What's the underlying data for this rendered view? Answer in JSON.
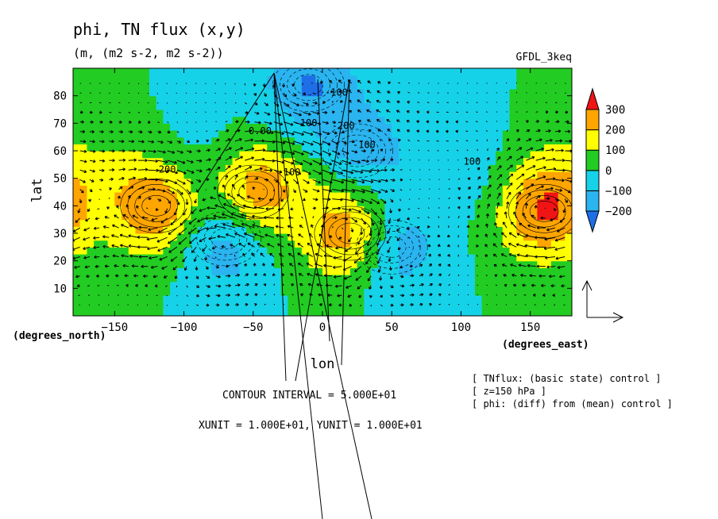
{
  "chart_data": {
    "type": "heatmap",
    "title": "phi, TN flux (x,y)",
    "subtitle": "(m, (m2 s-2, m2 s-2))",
    "model": "GFDL_3keq",
    "xlabel": "lon",
    "ylabel": "lat",
    "x_unit_label": "(degrees_east)",
    "y_unit_label": "(degrees_north)",
    "xlim": [
      -180,
      180
    ],
    "ylim": [
      0,
      90
    ],
    "x_ticks": [
      -150,
      -100,
      -50,
      0,
      50,
      100,
      150
    ],
    "x_tick_labels": [
      "−150",
      "−100",
      "−50",
      "0",
      "50",
      "100",
      "150"
    ],
    "y_ticks": [
      10,
      20,
      30,
      40,
      50,
      60,
      70,
      80
    ],
    "y_tick_labels": [
      "10",
      "20",
      "30",
      "40",
      "50",
      "60",
      "70",
      "80"
    ],
    "colorbar": {
      "levels": [
        -250,
        -200,
        -100,
        0,
        100,
        200,
        300,
        350
      ],
      "colors": [
        "#1e6ee8",
        "#2ab4f0",
        "#16d2e8",
        "#22cc22",
        "#ffff00",
        "#ffa500",
        "#f01414"
      ],
      "tick_values": [
        300,
        200,
        100,
        0,
        -100,
        -200
      ],
      "tick_labels": [
        "300",
        "200",
        "100",
        "0",
        "−100",
        "−200"
      ]
    },
    "contour_labels": [
      {
        "text": "0.00",
        "lon": -45,
        "lat": 66
      },
      {
        "text": "-100",
        "lon": -12,
        "lat": 69
      },
      {
        "text": "-100",
        "lon": 10,
        "lat": 80
      },
      {
        "text": "-200",
        "lon": 15,
        "lat": 68
      },
      {
        "text": "-100",
        "lon": 30,
        "lat": 61
      },
      {
        "text": "100",
        "lon": -22,
        "lat": 51
      },
      {
        "text": "200",
        "lon": -112,
        "lat": 52
      },
      {
        "text": "100",
        "lon": 108,
        "lat": 55
      }
    ],
    "features": [
      {
        "name": "low",
        "lon": -10,
        "lat": 84,
        "value": -200
      },
      {
        "name": "high",
        "lon": -120,
        "lat": 40,
        "value": 300
      },
      {
        "name": "high",
        "lon": -50,
        "lat": 45,
        "value": 300
      },
      {
        "name": "high",
        "lon": 20,
        "lat": 30,
        "value": 300
      },
      {
        "name": "low",
        "lon": 25,
        "lat": 60,
        "value": -200
      },
      {
        "name": "low",
        "lon": 50,
        "lat": 25,
        "value": -200
      },
      {
        "name": "low",
        "lon": -70,
        "lat": 28,
        "value": -200
      },
      {
        "name": "high",
        "lon": 160,
        "lat": 38,
        "value": 300
      }
    ],
    "contour_interval_text": "CONTOUR INTERVAL = 5.000E+01",
    "vector_unit_text": "XUNIT = 1.000E+01, YUNIT = 1.000E+01",
    "notes": [
      "[ TNflux: (basic state) control ]",
      "[ z=150 hPa ]",
      "[ phi: (diff) from (mean) control ]"
    ]
  }
}
